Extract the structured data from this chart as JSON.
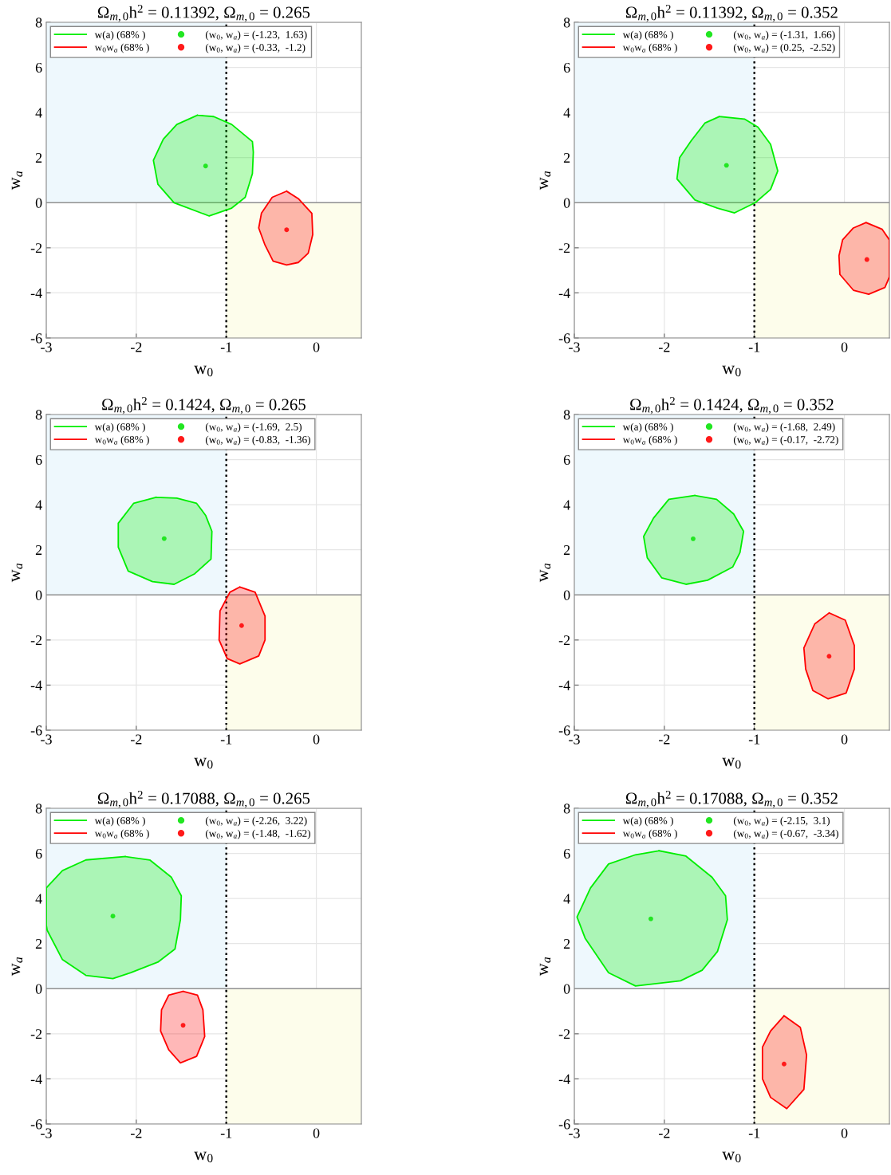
{
  "chart_data": [
    {
      "type": "area",
      "title": "Ω$_{m,0}$h$^{2}$ = 0.11392, Ω$_{m,0}$ = 0.265",
      "xlabel": "w$_{0}$",
      "ylabel": "w$_{a}$",
      "xlim": [
        -3,
        0.5
      ],
      "ylim": [
        -6,
        8
      ],
      "xticks": [
        -3,
        -2,
        -1,
        0
      ],
      "yticks": [
        -6,
        -4,
        -2,
        0,
        2,
        4,
        6,
        8
      ],
      "grid": true,
      "legend": "top left",
      "bands": [
        {
          "axis": "x",
          "from": -3,
          "to": -1,
          "color": "#eef8fd"
        },
        {
          "axis": "x",
          "from": -1,
          "to": 0.5,
          "color": "#fdfdeb"
        }
      ],
      "ref_lines": [
        {
          "axis": "x",
          "value": -1,
          "color": "#000000",
          "line_style": "dotted"
        },
        {
          "axis": "y",
          "value": 0,
          "color": "#909090",
          "line_style": "solid"
        }
      ],
      "series": [
        {
          "type": "area",
          "name": "w(a) (68% )",
          "color": "#00ee00",
          "x": [
            -1.32,
            -1.14,
            -0.94,
            -0.71,
            -0.7,
            -0.71,
            -0.79,
            -0.94,
            -1.19,
            -1.58,
            -1.76,
            -1.81,
            -1.7,
            -1.55
          ],
          "values": [
            3.88,
            3.82,
            3.47,
            2.71,
            2.24,
            1.29,
            0.24,
            -0.24,
            -0.59,
            0,
            0.82,
            1.88,
            2.82,
            3.47
          ]
        },
        {
          "type": "area",
          "name": "w$_{0}$w$_{a}$ (68% )",
          "color": "#ff0000",
          "x": [
            -0.33,
            -0.2,
            -0.05,
            -0.04,
            -0.09,
            -0.2,
            -0.33,
            -0.48,
            -0.57,
            -0.64,
            -0.61,
            -0.49
          ],
          "values": [
            0.51,
            0.18,
            -0.47,
            -1.41,
            -2.24,
            -2.65,
            -2.76,
            -2.59,
            -1.88,
            -1.12,
            -0.47,
            0.24
          ]
        },
        {
          "type": "scatter",
          "name": "(w$_{0}$, w$_{a}$) = (-1.23,  1.63)",
          "color": "#22e622",
          "x": [
            -1.23
          ],
          "values": [
            1.63
          ]
        },
        {
          "type": "scatter",
          "name": "(w$_{0}$, w$_{a}$) = (-0.33,  -1.2)",
          "color": "#ff1a1a",
          "x": [
            -0.33
          ],
          "values": [
            -1.2
          ]
        }
      ]
    },
    {
      "type": "area",
      "title": "Ω$_{m,0}$h$^{2}$ = 0.11392, Ω$_{m,0}$ = 0.352",
      "xlabel": "w$_{0}$",
      "ylabel": "w$_{a}$",
      "xlim": [
        -3,
        0.5
      ],
      "ylim": [
        -6,
        8
      ],
      "xticks": [
        -3,
        -2,
        -1,
        0
      ],
      "yticks": [
        -6,
        -4,
        -2,
        0,
        2,
        4,
        6,
        8
      ],
      "grid": true,
      "legend": "top left",
      "bands": [
        {
          "axis": "x",
          "from": -3,
          "to": -1,
          "color": "#eef8fd"
        },
        {
          "axis": "x",
          "from": -1,
          "to": 0.5,
          "color": "#fdfdeb"
        }
      ],
      "ref_lines": [
        {
          "axis": "x",
          "value": -1,
          "color": "#000000",
          "line_style": "dotted"
        },
        {
          "axis": "y",
          "value": 0,
          "color": "#909090",
          "line_style": "solid"
        }
      ],
      "series": [
        {
          "type": "area",
          "name": "w(a) (68% )",
          "color": "#00ee00",
          "x": [
            -1.39,
            -1.11,
            -0.96,
            -0.82,
            -0.74,
            -0.82,
            -0.99,
            -1.22,
            -1.41,
            -1.66,
            -1.86,
            -1.83,
            -1.7,
            -1.55
          ],
          "values": [
            3.82,
            3.71,
            3.35,
            2.59,
            1.41,
            0.59,
            0,
            -0.45,
            -0.24,
            0.12,
            1.06,
            2.0,
            2.76,
            3.53
          ]
        },
        {
          "type": "area",
          "name": "w$_{0}$w$_{a}$ (68% )",
          "color": "#ff0000",
          "x": [
            0.24,
            0.42,
            0.5,
            0.5,
            0.45,
            0.27,
            0.1,
            -0.05,
            -0.06,
            -0.02,
            0.1
          ],
          "values": [
            -0.88,
            -1.18,
            -1.65,
            -3.29,
            -3.76,
            -4.06,
            -3.88,
            -3.18,
            -2.35,
            -1.65,
            -1.12
          ]
        },
        {
          "type": "scatter",
          "name": "(w$_{0}$, w$_{a}$) = (-1.31,  1.66)",
          "color": "#22e622",
          "x": [
            -1.31
          ],
          "values": [
            1.66
          ]
        },
        {
          "type": "scatter",
          "name": "(w$_{0}$, w$_{a}$) = (0.25,  -2.52)",
          "color": "#ff1a1a",
          "x": [
            0.25
          ],
          "values": [
            -2.52
          ]
        }
      ]
    },
    {
      "type": "area",
      "title": "Ω$_{m,0}$h$^{2}$ = 0.1424, Ω$_{m,0}$ = 0.265",
      "xlabel": "w$_{0}$",
      "ylabel": "w$_{a}$",
      "xlim": [
        -3,
        0.5
      ],
      "ylim": [
        -6,
        8
      ],
      "xticks": [
        -3,
        -2,
        -1,
        0
      ],
      "yticks": [
        -6,
        -4,
        -2,
        0,
        2,
        4,
        6,
        8
      ],
      "grid": true,
      "legend": "top left",
      "bands": [
        {
          "axis": "x",
          "from": -3,
          "to": -1,
          "color": "#eef8fd"
        },
        {
          "axis": "x",
          "from": -1,
          "to": 0.5,
          "color": "#fdfdeb"
        }
      ],
      "ref_lines": [
        {
          "axis": "x",
          "value": -1,
          "color": "#000000",
          "line_style": "dotted"
        },
        {
          "axis": "y",
          "value": 0,
          "color": "#909090",
          "line_style": "solid"
        }
      ],
      "series": [
        {
          "type": "area",
          "name": "w(a) (68% )",
          "color": "#00ee00",
          "x": [
            -1.78,
            -1.55,
            -1.33,
            -1.23,
            -1.16,
            -1.17,
            -1.35,
            -1.58,
            -1.82,
            -2.09,
            -2.2,
            -2.2,
            -2.03
          ],
          "values": [
            4.33,
            4.29,
            4.06,
            3.53,
            2.82,
            1.59,
            0.94,
            0.47,
            0.59,
            1.06,
            2.12,
            3.18,
            4.06
          ]
        },
        {
          "type": "area",
          "name": "w$_{0}$w$_{a}$ (68% )",
          "color": "#ff0000",
          "x": [
            -0.85,
            -0.68,
            -0.57,
            -0.57,
            -0.64,
            -0.85,
            -0.99,
            -1.08,
            -1.07,
            -0.96
          ],
          "values": [
            0.35,
            0.12,
            -0.94,
            -2.0,
            -2.71,
            -3.06,
            -2.82,
            -2.0,
            -0.71,
            0.12
          ]
        },
        {
          "type": "scatter",
          "name": "(w$_{0}$, w$_{a}$) = (-1.69,  2.5)",
          "color": "#22e622",
          "x": [
            -1.69
          ],
          "values": [
            2.5
          ]
        },
        {
          "type": "scatter",
          "name": "(w$_{0}$, w$_{a}$) = (-0.83,  -1.36)",
          "color": "#ff1a1a",
          "x": [
            -0.83
          ],
          "values": [
            -1.36
          ]
        }
      ]
    },
    {
      "type": "area",
      "title": "Ω$_{m,0}$h$^{2}$ = 0.1424, Ω$_{m,0}$ = 0.352",
      "xlabel": "w$_{0}$",
      "ylabel": "w$_{a}$",
      "xlim": [
        -3,
        0.5
      ],
      "ylim": [
        -6,
        8
      ],
      "xticks": [
        -3,
        -2,
        -1,
        0
      ],
      "yticks": [
        -6,
        -4,
        -2,
        0,
        2,
        4,
        6,
        8
      ],
      "grid": true,
      "legend": "top left",
      "bands": [
        {
          "axis": "x",
          "from": -3,
          "to": -1,
          "color": "#eef8fd"
        },
        {
          "axis": "x",
          "from": -1,
          "to": 0.5,
          "color": "#fdfdeb"
        }
      ],
      "ref_lines": [
        {
          "axis": "x",
          "value": -1,
          "color": "#000000",
          "line_style": "dotted"
        },
        {
          "axis": "y",
          "value": 0,
          "color": "#909090",
          "line_style": "solid"
        }
      ],
      "series": [
        {
          "type": "area",
          "name": "w(a) (68% )",
          "color": "#00ee00",
          "x": [
            -1.66,
            -1.42,
            -1.23,
            -1.12,
            -1.16,
            -1.24,
            -1.52,
            -1.76,
            -2.03,
            -2.19,
            -2.23,
            -2.12,
            -1.95
          ],
          "values": [
            4.41,
            4.24,
            3.59,
            2.82,
            1.88,
            1.24,
            0.65,
            0.47,
            0.76,
            1.65,
            2.59,
            3.41,
            4.24
          ]
        },
        {
          "type": "area",
          "name": "w$_{0}$w$_{a}$ (68% )",
          "color": "#ff0000",
          "x": [
            -0.17,
            0.01,
            0.11,
            0.11,
            0.02,
            -0.18,
            -0.35,
            -0.43,
            -0.45,
            -0.33
          ],
          "values": [
            -0.8,
            -1.12,
            -2.24,
            -3.29,
            -4.35,
            -4.61,
            -4.24,
            -3.29,
            -2.35,
            -1.29
          ]
        },
        {
          "type": "scatter",
          "name": "(w$_{0}$, w$_{a}$) = (-1.68,  2.49)",
          "color": "#22e622",
          "x": [
            -1.68
          ],
          "values": [
            2.49
          ]
        },
        {
          "type": "scatter",
          "name": "(w$_{0}$, w$_{a}$) = (-0.17,  -2.72)",
          "color": "#ff1a1a",
          "x": [
            -0.17
          ],
          "values": [
            -2.72
          ]
        }
      ]
    },
    {
      "type": "area",
      "title": "Ω$_{m,0}$h$^{2}$ = 0.17088, Ω$_{m,0}$ = 0.265",
      "xlabel": "w$_{0}$",
      "ylabel": "w$_{a}$",
      "xlim": [
        -3,
        0.5
      ],
      "ylim": [
        -6,
        8
      ],
      "xticks": [
        -3,
        -2,
        -1,
        0
      ],
      "yticks": [
        -6,
        -4,
        -2,
        0,
        2,
        4,
        6,
        8
      ],
      "grid": true,
      "legend": "top left",
      "bands": [
        {
          "axis": "x",
          "from": -3,
          "to": -1,
          "color": "#eef8fd"
        },
        {
          "axis": "x",
          "from": -1,
          "to": 0.5,
          "color": "#fdfdeb"
        }
      ],
      "ref_lines": [
        {
          "axis": "x",
          "value": -1,
          "color": "#000000",
          "line_style": "dotted"
        },
        {
          "axis": "y",
          "value": 0,
          "color": "#909090",
          "line_style": "solid"
        }
      ],
      "series": [
        {
          "type": "area",
          "name": "w(a) (68% )",
          "color": "#00ee00",
          "x": [
            -2.12,
            -1.85,
            -1.61,
            -1.5,
            -1.51,
            -1.57,
            -1.76,
            -2.06,
            -2.26,
            -2.56,
            -2.82,
            -2.99,
            -3.0,
            -3.0,
            -2.82,
            -2.56
          ],
          "values": [
            5.86,
            5.71,
            4.94,
            4.12,
            3.06,
            1.76,
            1.18,
            0.71,
            0.45,
            0.59,
            1.29,
            2.59,
            2.82,
            4.47,
            5.24,
            5.71
          ]
        },
        {
          "type": "area",
          "name": "w$_{0}$w$_{a}$ (68% )",
          "color": "#ff0000",
          "x": [
            -1.48,
            -1.32,
            -1.26,
            -1.24,
            -1.33,
            -1.51,
            -1.64,
            -1.73,
            -1.72,
            -1.64
          ],
          "values": [
            -0.12,
            -0.29,
            -0.94,
            -2.12,
            -3.0,
            -3.29,
            -2.71,
            -1.88,
            -0.94,
            -0.29
          ]
        },
        {
          "type": "scatter",
          "name": "(w$_{0}$, w$_{a}$) = (-2.26,  3.22)",
          "color": "#22e622",
          "x": [
            -2.26
          ],
          "values": [
            3.22
          ]
        },
        {
          "type": "scatter",
          "name": "(w$_{0}$, w$_{a}$) = (-1.48,  -1.62)",
          "color": "#ff1a1a",
          "x": [
            -1.48
          ],
          "values": [
            -1.62
          ]
        }
      ]
    },
    {
      "type": "area",
      "title": "Ω$_{m,0}$h$^{2}$ = 0.17088, Ω$_{m,0}$ = 0.352",
      "xlabel": "w$_{0}$",
      "ylabel": "w$_{a}$",
      "xlim": [
        -3,
        0.5
      ],
      "ylim": [
        -6,
        8
      ],
      "xticks": [
        -3,
        -2,
        -1,
        0
      ],
      "yticks": [
        -6,
        -4,
        -2,
        0,
        2,
        4,
        6,
        8
      ],
      "grid": true,
      "legend": "top left",
      "bands": [
        {
          "axis": "x",
          "from": -3,
          "to": -1,
          "color": "#eef8fd"
        },
        {
          "axis": "x",
          "from": -1,
          "to": 0.5,
          "color": "#fdfdeb"
        }
      ],
      "ref_lines": [
        {
          "axis": "x",
          "value": -1,
          "color": "#000000",
          "line_style": "dotted"
        },
        {
          "axis": "y",
          "value": 0,
          "color": "#909090",
          "line_style": "solid"
        }
      ],
      "series": [
        {
          "type": "area",
          "name": "w(a) (68% )",
          "color": "#00ee00",
          "x": [
            -2.06,
            -1.76,
            -1.47,
            -1.32,
            -1.3,
            -1.41,
            -1.58,
            -1.82,
            -2.32,
            -2.62,
            -2.88,
            -2.97,
            -2.82,
            -2.62,
            -2.32
          ],
          "values": [
            6.12,
            5.88,
            4.94,
            4.12,
            3.06,
            1.65,
            0.82,
            0.35,
            0.12,
            0.71,
            2.24,
            3.18,
            4.47,
            5.53,
            5.94
          ]
        },
        {
          "type": "area",
          "name": "w$_{0}$w$_{a}$ (68% )",
          "color": "#ff0000",
          "x": [
            -0.67,
            -0.49,
            -0.42,
            -0.45,
            -0.64,
            -0.82,
            -0.91,
            -0.91,
            -0.82
          ],
          "values": [
            -1.2,
            -1.71,
            -2.94,
            -4.47,
            -5.32,
            -4.82,
            -4.0,
            -2.59,
            -1.88
          ]
        },
        {
          "type": "scatter",
          "name": "(w$_{0}$, w$_{a}$) = (-2.15,  3.1)",
          "color": "#22e622",
          "x": [
            -2.15
          ],
          "values": [
            3.1
          ]
        },
        {
          "type": "scatter",
          "name": "(w$_{0}$, w$_{a}$) = (-0.67,  -3.34)",
          "color": "#ff1a1a",
          "x": [
            -0.67
          ],
          "values": [
            -3.34
          ]
        }
      ]
    }
  ]
}
